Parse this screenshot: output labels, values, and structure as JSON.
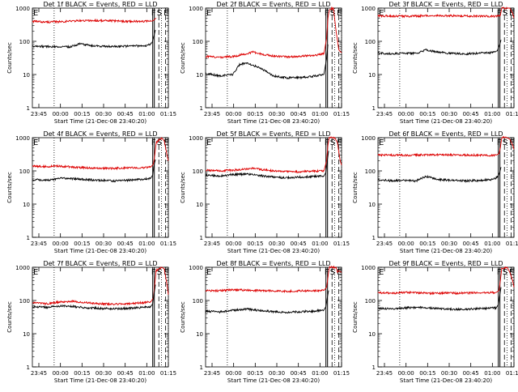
{
  "figure": {
    "xlabel": "Start Time (21-Dec-08 23:40:20)",
    "ylabel": "Counts/sec",
    "colors": {
      "events": "#000000",
      "lld": "#dd0000",
      "frame": "#000000"
    }
  },
  "chart_data": [
    {
      "type": "line",
      "title": "Det 1f BLACK = Events, RED = LLD",
      "annotations": [
        "E",
        "F",
        "S",
        "E"
      ],
      "x_ticks": [
        "23:45",
        "00:00",
        "00:15",
        "00:30",
        "00:45",
        "01:00",
        "01:15"
      ],
      "y_ticks": [
        "1",
        "10",
        "100",
        "1000"
      ],
      "ylim": [
        1,
        1000
      ],
      "yscale": "log",
      "xlim": [
        0,
        100
      ],
      "series": [
        {
          "color": "red",
          "x": [
            0,
            10,
            20,
            30,
            40,
            50,
            60,
            70,
            80,
            87,
            89,
            90,
            91
          ],
          "y": [
            400,
            380,
            390,
            410,
            420,
            420,
            410,
            400,
            400,
            400,
            420,
            460,
            500
          ]
        },
        {
          "color": "black",
          "x": [
            0,
            10,
            20,
            28,
            35,
            45,
            55,
            65,
            75,
            85,
            88,
            89.5,
            90.5
          ],
          "y": [
            72,
            70,
            68,
            68,
            85,
            72,
            70,
            70,
            72,
            75,
            90,
            150,
            220
          ]
        }
      ],
      "markers": {
        "solid": [
          88.5
        ],
        "dashed": [
          93,
          98
        ],
        "dotted": [
          16,
          95,
          100
        ]
      }
    },
    {
      "type": "line",
      "title": "Det 2f BLACK = Events, RED = LLD",
      "annotations": [
        "E",
        "F",
        "S",
        "E"
      ],
      "x_ticks": [
        "23:45",
        "00:00",
        "00:15",
        "00:30",
        "00:45",
        "01:00",
        "01:15"
      ],
      "y_ticks": [
        "1",
        "10",
        "100",
        "1000"
      ],
      "ylim": [
        1,
        1000
      ],
      "yscale": "log",
      "xlim": [
        0,
        100
      ],
      "series": [
        {
          "color": "red",
          "x": [
            0,
            10,
            20,
            30,
            35,
            40,
            50,
            60,
            70,
            80,
            87,
            89,
            90,
            91,
            94,
            96,
            98,
            100
          ],
          "y": [
            35,
            33,
            35,
            42,
            48,
            42,
            36,
            34,
            36,
            38,
            42,
            120,
            500,
            900,
            1000,
            200,
            55,
            45
          ]
        },
        {
          "color": "black",
          "x": [
            0,
            10,
            20,
            25,
            30,
            40,
            50,
            60,
            70,
            80,
            87,
            89,
            90
          ],
          "y": [
            11,
            9,
            10,
            20,
            22,
            16,
            9,
            8,
            8,
            9,
            10,
            30,
            80
          ]
        }
      ],
      "markers": {
        "solid": [
          88.5
        ],
        "dashed": [
          93,
          98
        ],
        "dotted": [
          16,
          95,
          100
        ]
      }
    },
    {
      "type": "line",
      "title": "Det 3f BLACK = Events, RED = LLD",
      "annotations": [
        "E",
        "F",
        "S",
        "E"
      ],
      "x_ticks": [
        "23:45",
        "00:00",
        "00:15",
        "00:30",
        "00:45",
        "01:00",
        "01:15"
      ],
      "y_ticks": [
        "1",
        "10",
        "100",
        "1000"
      ],
      "ylim": [
        1,
        1000
      ],
      "yscale": "log",
      "xlim": [
        0,
        100
      ],
      "series": [
        {
          "color": "red",
          "x": [
            0,
            20,
            40,
            60,
            80,
            87,
            90,
            91,
            95,
            97,
            99,
            100
          ],
          "y": [
            580,
            570,
            590,
            580,
            570,
            570,
            600,
            1000,
            1000,
            1000,
            700,
            500
          ]
        },
        {
          "color": "black",
          "x": [
            0,
            10,
            20,
            28,
            35,
            45,
            55,
            65,
            75,
            85,
            88,
            89.5,
            90.5
          ],
          "y": [
            45,
            42,
            44,
            43,
            55,
            46,
            43,
            42,
            44,
            46,
            55,
            80,
            110
          ]
        }
      ],
      "markers": {
        "solid": [
          88.5
        ],
        "dashed": [
          93,
          98
        ],
        "dotted": [
          16,
          95,
          100
        ]
      }
    },
    {
      "type": "line",
      "title": "Det 4f BLACK = Events, RED = LLD",
      "annotations": [
        "E",
        "F",
        "S",
        "E"
      ],
      "x_ticks": [
        "23:45",
        "00:00",
        "00:15",
        "00:30",
        "00:45",
        "01:00",
        "01:15"
      ],
      "y_ticks": [
        "1",
        "10",
        "100",
        "1000"
      ],
      "ylim": [
        1,
        1000
      ],
      "yscale": "log",
      "xlim": [
        0,
        100
      ],
      "series": [
        {
          "color": "red",
          "x": [
            0,
            10,
            20,
            30,
            40,
            50,
            60,
            70,
            80,
            87,
            89,
            90,
            91,
            95,
            97,
            99,
            100
          ],
          "y": [
            140,
            135,
            140,
            130,
            125,
            120,
            120,
            125,
            125,
            130,
            160,
            300,
            700,
            1000,
            800,
            300,
            200
          ]
        },
        {
          "color": "black",
          "x": [
            0,
            10,
            20,
            30,
            40,
            50,
            60,
            70,
            80,
            87,
            88.5,
            89.5,
            90.5
          ],
          "y": [
            55,
            52,
            60,
            58,
            55,
            52,
            50,
            52,
            55,
            60,
            75,
            150,
            220
          ]
        }
      ],
      "markers": {
        "solid": [
          88.5
        ],
        "dashed": [
          93,
          98
        ],
        "dotted": [
          16,
          95,
          100
        ]
      }
    },
    {
      "type": "line",
      "title": "Det 5f BLACK = Events, RED = LLD",
      "annotations": [
        "E",
        "F",
        "S",
        "E"
      ],
      "x_ticks": [
        "23:45",
        "00:00",
        "00:15",
        "00:30",
        "00:45",
        "01:00",
        "01:15"
      ],
      "y_ticks": [
        "1",
        "10",
        "100",
        "1000"
      ],
      "ylim": [
        1,
        1000
      ],
      "yscale": "log",
      "xlim": [
        0,
        100
      ],
      "series": [
        {
          "color": "red",
          "x": [
            0,
            10,
            20,
            30,
            35,
            40,
            50,
            60,
            70,
            80,
            87,
            89,
            90,
            91,
            95,
            97,
            99,
            100
          ],
          "y": [
            105,
            100,
            105,
            115,
            120,
            110,
            100,
            95,
            95,
            98,
            100,
            200,
            600,
            1000,
            1000,
            700,
            200,
            150
          ]
        },
        {
          "color": "black",
          "x": [
            0,
            10,
            20,
            30,
            40,
            50,
            60,
            70,
            80,
            87,
            88.5,
            89.5,
            90.5
          ],
          "y": [
            75,
            70,
            78,
            80,
            72,
            65,
            62,
            65,
            68,
            70,
            90,
            200,
            400
          ]
        }
      ],
      "markers": {
        "solid": [
          88.5
        ],
        "dashed": [
          93,
          98
        ],
        "dotted": [
          16,
          95,
          100
        ]
      }
    },
    {
      "type": "line",
      "title": "Det 6f BLACK = Events, RED = LLD",
      "annotations": [
        "E",
        "F",
        "S",
        "E"
      ],
      "x_ticks": [
        "23:45",
        "00:00",
        "00:15",
        "00:30",
        "00:45",
        "01:00",
        "01:15"
      ],
      "y_ticks": [
        "1",
        "10",
        "100",
        "1000"
      ],
      "ylim": [
        1,
        1000
      ],
      "yscale": "log",
      "xlim": [
        0,
        100
      ],
      "series": [
        {
          "color": "red",
          "x": [
            0,
            20,
            40,
            60,
            80,
            87,
            89,
            90,
            91,
            95,
            97,
            99,
            100
          ],
          "y": [
            300,
            295,
            310,
            300,
            295,
            300,
            330,
            500,
            1000,
            1000,
            900,
            600,
            450
          ]
        },
        {
          "color": "black",
          "x": [
            0,
            10,
            20,
            28,
            35,
            45,
            55,
            65,
            75,
            85,
            88,
            89.5,
            90.5
          ],
          "y": [
            55,
            50,
            52,
            50,
            68,
            55,
            52,
            50,
            52,
            56,
            65,
            90,
            130
          ]
        }
      ],
      "markers": {
        "solid": [
          88.5
        ],
        "dashed": [
          93,
          98
        ],
        "dotted": [
          16,
          95,
          100
        ]
      }
    },
    {
      "type": "line",
      "title": "Det 7f BLACK = Events, RED = LLD",
      "annotations": [
        "E",
        "F",
        "S",
        "E"
      ],
      "x_ticks": [
        "23:45",
        "00:00",
        "00:15",
        "00:30",
        "00:45",
        "01:00",
        "01:15"
      ],
      "y_ticks": [
        "1",
        "10",
        "100",
        "1000"
      ],
      "ylim": [
        1,
        1000
      ],
      "yscale": "log",
      "xlim": [
        0,
        100
      ],
      "series": [
        {
          "color": "red",
          "x": [
            0,
            10,
            20,
            30,
            40,
            50,
            60,
            70,
            80,
            87,
            89,
            90,
            91,
            95,
            97,
            99,
            100
          ],
          "y": [
            85,
            80,
            90,
            95,
            85,
            80,
            78,
            80,
            85,
            90,
            120,
            300,
            800,
            1000,
            900,
            300,
            150
          ]
        },
        {
          "color": "black",
          "x": [
            0,
            10,
            20,
            30,
            40,
            50,
            60,
            70,
            80,
            87,
            88.5,
            89.5,
            90.5
          ],
          "y": [
            65,
            62,
            68,
            66,
            60,
            58,
            56,
            58,
            62,
            65,
            80,
            160,
            300
          ]
        }
      ],
      "markers": {
        "solid": [
          88.5
        ],
        "dashed": [
          93,
          98
        ],
        "dotted": [
          16,
          95,
          100
        ]
      }
    },
    {
      "type": "line",
      "title": "Det 8f BLACK = Events, RED = LLD",
      "annotations": [
        "E",
        "F",
        "S",
        "E"
      ],
      "x_ticks": [
        "23:45",
        "00:00",
        "00:15",
        "00:30",
        "00:45",
        "01:00",
        "01:15"
      ],
      "y_ticks": [
        "1",
        "10",
        "100",
        "1000"
      ],
      "ylim": [
        1,
        1000
      ],
      "yscale": "log",
      "xlim": [
        0,
        100
      ],
      "series": [
        {
          "color": "red",
          "x": [
            0,
            10,
            20,
            30,
            40,
            50,
            60,
            70,
            80,
            87,
            89,
            90,
            91,
            96,
            97,
            98,
            100
          ],
          "y": [
            200,
            195,
            210,
            205,
            200,
            195,
            190,
            195,
            200,
            200,
            250,
            500,
            1000,
            1000,
            700,
            800,
            700
          ]
        },
        {
          "color": "black",
          "x": [
            0,
            10,
            20,
            30,
            40,
            50,
            60,
            70,
            80,
            87,
            88.5,
            89.5,
            90.5
          ],
          "y": [
            48,
            45,
            50,
            55,
            50,
            46,
            44,
            46,
            48,
            52,
            65,
            120,
            200
          ]
        }
      ],
      "markers": {
        "solid": [
          88.5
        ],
        "dashed": [
          93,
          98
        ],
        "dotted": [
          16,
          95,
          100
        ]
      }
    },
    {
      "type": "line",
      "title": "Det 9f BLACK = Events, RED = LLD",
      "annotations": [
        "E",
        "F",
        "S",
        "E"
      ],
      "x_ticks": [
        "23:45",
        "00:00",
        "00:15",
        "00:30",
        "00:45",
        "01:00",
        "01:15"
      ],
      "y_ticks": [
        "1",
        "10",
        "100",
        "1000"
      ],
      "ylim": [
        1,
        1000
      ],
      "yscale": "log",
      "xlim": [
        0,
        100
      ],
      "series": [
        {
          "color": "red",
          "x": [
            0,
            10,
            20,
            30,
            40,
            50,
            60,
            70,
            80,
            87,
            89,
            90,
            91,
            95,
            97,
            99,
            100
          ],
          "y": [
            170,
            165,
            175,
            170,
            165,
            168,
            165,
            170,
            172,
            175,
            200,
            400,
            900,
            1000,
            700,
            400,
            250
          ]
        },
        {
          "color": "black",
          "x": [
            0,
            10,
            20,
            30,
            40,
            50,
            60,
            70,
            80,
            87,
            88.5,
            89.5,
            90.5
          ],
          "y": [
            58,
            55,
            60,
            62,
            58,
            55,
            54,
            56,
            58,
            60,
            75,
            140,
            250
          ]
        }
      ],
      "markers": {
        "solid": [
          88.5
        ],
        "dashed": [
          93,
          98
        ],
        "dotted": [
          16,
          95,
          100
        ]
      }
    }
  ]
}
